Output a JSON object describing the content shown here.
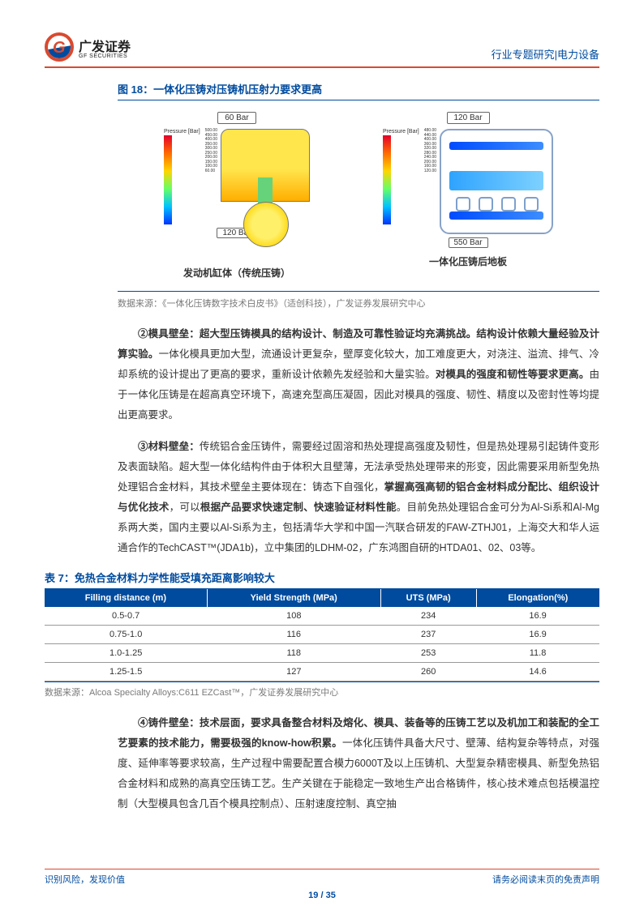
{
  "header": {
    "logo_letter": "G",
    "logo_cn": "广发证券",
    "logo_en": "GF SECURITIES",
    "right": "行业专题研究|电力设备"
  },
  "figure18": {
    "title": "图 18：一体化压铸对压铸机压射力要求更高",
    "left_top_badge": "60 Bar",
    "left_scale_label": "Pressure [Bar]",
    "left_ticks": "500.00\n450.00\n400.00\n350.00\n300.00\n250.00\n200.00\n150.00\n100.00\n60.00",
    "left_bottom_badge": "120 Bar",
    "left_caption": "发动机缸体（传统压铸）",
    "right_top_badge": "120 Bar",
    "right_scale_label": "Pressure [Bar]",
    "right_ticks": "480.00\n440.00\n400.00\n360.00\n320.00\n280.00\n240.00\n200.00\n160.00\n120.00",
    "right_bottom_badge": "550 Bar",
    "right_caption": "一体化压铸后地板",
    "source": "数据来源：《一体化压铸数字技术白皮书》（适创科技），广发证券发展研究中心"
  },
  "para2": {
    "lead": "②模具壁垒：超大型压铸模具的结构设计、制造及可靠性验证均充满挑战。结构设计依赖大量经验及计算实验。",
    "mid": "一体化模具更加大型，流通设计更复杂，壁厚变化较大，加工难度更大，对浇注、溢流、排气、冷却系统的设计提出了更高的要求，重新设计依赖先发经验和大量实验。",
    "bold2": "对模具的强度和韧性等要求更高。",
    "tail": "由于一体化压铸是在超高真空环境下，高速充型高压凝固，因此对模具的强度、韧性、精度以及密封性等均提出更高要求。"
  },
  "para3": {
    "lead": "③材料壁垒：",
    "t1": "传统铝合金压铸件，需要经过固溶和热处理提高强度及韧性，但是热处理易引起铸件变形及表面缺陷。超大型一体化结构件由于体积大且壁薄，无法承受热处理带来的形变，因此需要采用新型免热处理铝合金材料，其技术壁垒主要体现在：铸态下自强化，",
    "bold1": "掌握高强高韧的铝合金材料成分配比、组织设计与优化技术",
    "t2": "，可以",
    "bold2": "根据产品要求快速定制、快速验证材料性能",
    "t3": "。目前免热处理铝合金可分为Al-Si系和Al-Mg系两大类，国内主要以Al-Si系为主，包括清华大学和中国一汽联合研发的FAW-ZTHJ01，上海交大和华人运通合作的TechCAST™(JDA1b)，立中集团的LDHM-02，广东鸿图自研的HTDA01、02、03等。"
  },
  "table7": {
    "title": "表 7：免热合金材料力学性能受填充距离影响较大",
    "columns": [
      "Filling distance (m)",
      "Yield Strength (MPa)",
      "UTS (MPa)",
      "Elongation(%)"
    ],
    "rows": [
      [
        "0.5-0.7",
        "108",
        "234",
        "16.9"
      ],
      [
        "0.75-1.0",
        "116",
        "237",
        "16.9"
      ],
      [
        "1.0-1.25",
        "118",
        "253",
        "11.8"
      ],
      [
        "1.25-1.5",
        "127",
        "260",
        "14.6"
      ]
    ],
    "source": "数据来源：Alcoa Specialty Alloys:C611 EZCast™，广发证券发展研究中心"
  },
  "para4": {
    "lead": "④铸件壁垒：技术层面，要求具备整合材料及熔化、模具、装备等的压铸工艺以及机加工和装配的全工艺要素的技术能力，需要极强的know-how积累。",
    "tail": "一体化压铸件具备大尺寸、壁薄、结构复杂等特点，对强度、延伸率等要求较高，生产过程中需要配置合模力6000T及以上压铸机、大型复杂精密模具、新型免热铝合金材料和成熟的高真空压铸工艺。生产关键在于能稳定一致地生产出合格铸件，核心技术难点包括模温控制（大型模具包含几百个模具控制点）、压射速度控制、真空抽"
  },
  "footer": {
    "left": "识别风险，发现价值",
    "right": "请务必阅读末页的免责声明",
    "page": "19 / 35"
  }
}
